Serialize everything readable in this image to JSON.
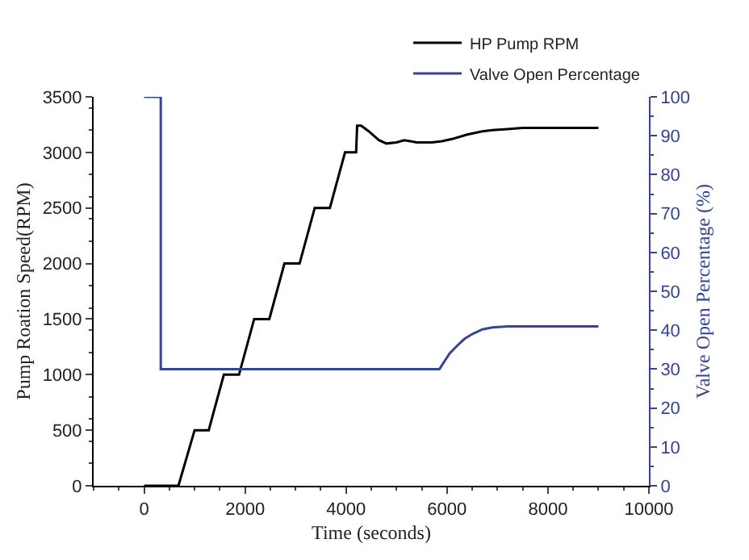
{
  "chart_data": {
    "type": "line",
    "xlabel": "Time (seconds)",
    "ylabel": "Pump Roation Speed(RPM)",
    "y2label": "Valve Open Percentage (%)",
    "xlim": [
      -1000,
      10000
    ],
    "xticks": [
      0,
      2000,
      4000,
      6000,
      8000,
      10000
    ],
    "ylim": [
      0,
      3500
    ],
    "yticks": [
      0,
      500,
      1000,
      1500,
      2000,
      2500,
      3000,
      3500
    ],
    "y2lim": [
      0,
      100
    ],
    "y2ticks": [
      0,
      10,
      20,
      30,
      40,
      50,
      60,
      70,
      80,
      90,
      100
    ],
    "legend": "top right",
    "marker": "none",
    "line_style": "solid",
    "series": [
      {
        "name": "HP Pump RPM",
        "color": "#000000",
        "x": [
          0,
          680,
          1000,
          1280,
          1580,
          1880,
          2180,
          2480,
          2780,
          3080,
          3380,
          3680,
          3980,
          4200,
          4220,
          4300,
          4450,
          4650,
          4800,
          5000,
          5150,
          5400,
          5700,
          5900,
          6100,
          6400,
          6700,
          6900,
          7200,
          7500,
          8000,
          9000
        ],
        "values": [
          0,
          0,
          500,
          500,
          1000,
          1000,
          1500,
          1500,
          2000,
          2000,
          2500,
          2500,
          3000,
          3000,
          3240,
          3240,
          3190,
          3110,
          3080,
          3090,
          3110,
          3090,
          3090,
          3100,
          3120,
          3160,
          3190,
          3200,
          3210,
          3220,
          3220,
          3220
        ]
      },
      {
        "name": "Valve Open Percentage",
        "color": "#34449a",
        "axis": "y2",
        "x": [
          0,
          330,
          330,
          5850,
          5950,
          6050,
          6200,
          6350,
          6500,
          6700,
          6900,
          7200,
          8000,
          9000
        ],
        "values": [
          100,
          100,
          30,
          30,
          32,
          34,
          36,
          37.8,
          39,
          40.2,
          40.7,
          41,
          41,
          41
        ]
      }
    ]
  }
}
